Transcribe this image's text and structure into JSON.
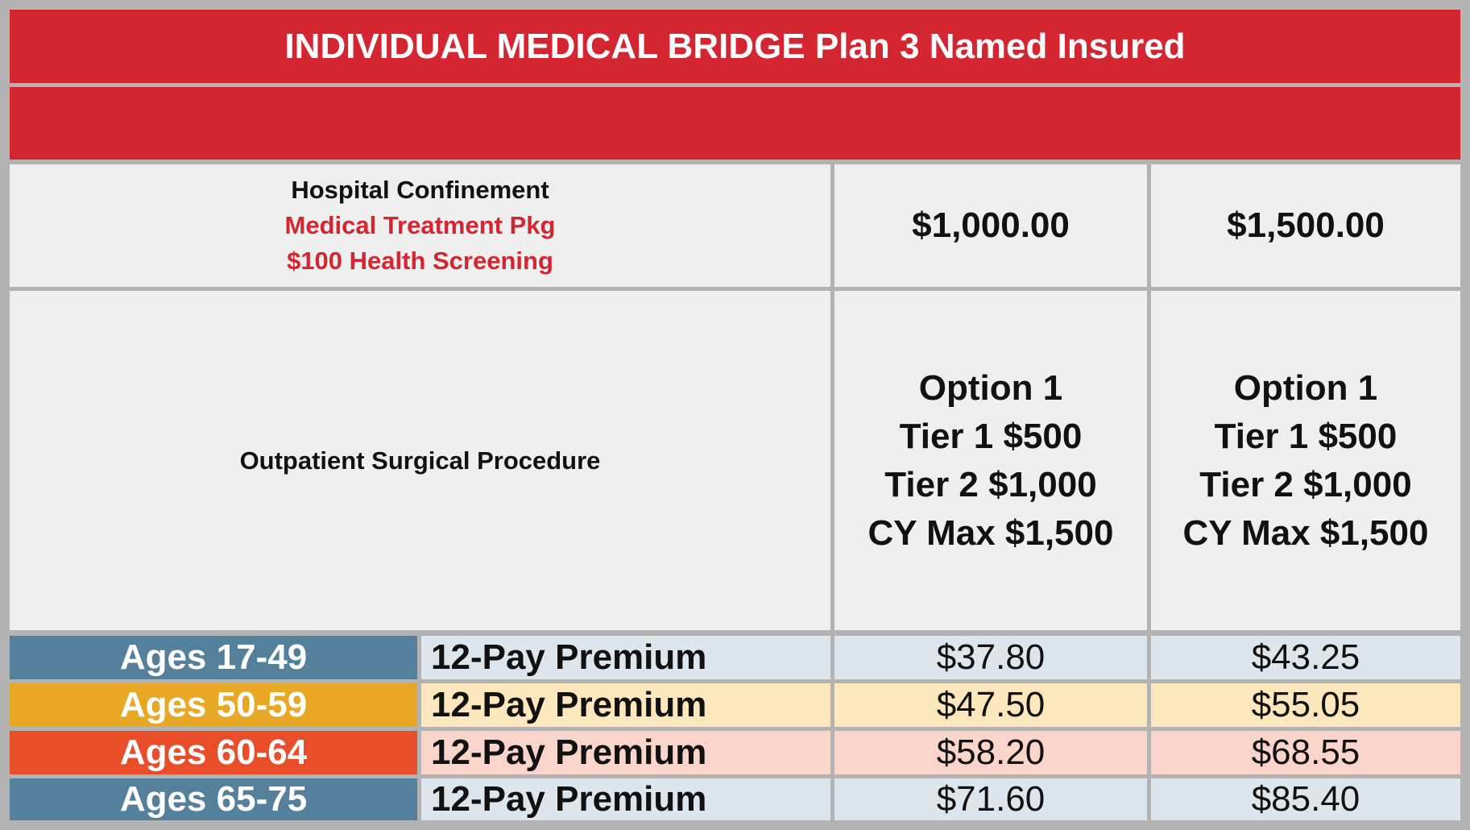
{
  "title": "INDIVIDUAL MEDICAL BRIDGE Plan 3 Named Insured",
  "benefits": {
    "label_lines": [
      "Hospital Confinement",
      "Medical Treatment Pkg",
      "$100 Health Screening"
    ],
    "values": [
      "$1,000.00",
      "$1,500.00"
    ]
  },
  "outpatient": {
    "label": "Outpatient Surgical Procedure",
    "options": [
      [
        "Option 1",
        "Tier 1 $500",
        "Tier 2 $1,000",
        "CY Max $1,500"
      ],
      [
        "Option 1",
        "Tier 1 $500",
        "Tier 2 $1,000",
        "CY Max $1,500"
      ]
    ]
  },
  "rates": [
    {
      "age": "Ages 17-49",
      "pay": "12-Pay Premium",
      "prices": [
        "$37.80",
        "$43.25"
      ]
    },
    {
      "age": "Ages 50-59",
      "pay": "12-Pay Premium",
      "prices": [
        "$47.50",
        "$55.05"
      ]
    },
    {
      "age": "Ages 60-64",
      "pay": "12-Pay Premium",
      "prices": [
        "$58.20",
        "$68.55"
      ]
    },
    {
      "age": "Ages 65-75",
      "pay": "12-Pay Premium",
      "prices": [
        "$71.60",
        "$85.40"
      ]
    }
  ],
  "colors": {
    "header_red": "#d42630",
    "age_band_1": "#55809b",
    "age_band_2": "#e8a825",
    "age_band_3": "#e94e2a",
    "age_band_4": "#55809b",
    "row_tint_1": "#dce6ec",
    "row_tint_2": "#fce8bc",
    "row_tint_3": "#f9d5cb",
    "row_tint_4": "#dce6ec"
  }
}
